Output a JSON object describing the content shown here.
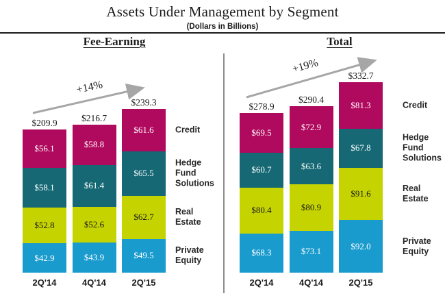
{
  "title": "Assets Under Management by Segment",
  "subtitle": "(Dollars in Billions)",
  "colors": {
    "credit": "#B00A5E",
    "hedge_fund_solutions": "#156874",
    "real_estate": "#C5D400",
    "private_equity": "#1A9BCE",
    "arrow": "#A6A6A6",
    "divider": "#8C8C8C",
    "top_rule": "#1A1A1A"
  },
  "chart_data": [
    {
      "type": "bar",
      "stacked": true,
      "title": "Fee-Earning",
      "growth_label": "+14%",
      "categories": [
        "2Q'14",
        "4Q'14",
        "2Q'15"
      ],
      "series": [
        {
          "name": "Private Equity",
          "color": "#1A9BCE",
          "label_color": "#FFFFFF",
          "values": [
            42.9,
            43.9,
            49.5
          ]
        },
        {
          "name": "Real Estate",
          "color": "#C5D400",
          "label_color": "#1A1A1A",
          "values": [
            52.8,
            52.6,
            62.7
          ]
        },
        {
          "name": "Hedge Fund Solutions",
          "color": "#156874",
          "label_color": "#FFFFFF",
          "values": [
            58.1,
            61.4,
            65.5
          ]
        },
        {
          "name": "Credit",
          "color": "#B00A5E",
          "label_color": "#FFFFFF",
          "values": [
            56.1,
            58.8,
            61.6
          ]
        }
      ],
      "totals": [
        209.9,
        216.7,
        239.3
      ],
      "value_prefix": "$",
      "legend_position": "right",
      "grid": false
    },
    {
      "type": "bar",
      "stacked": true,
      "title": "Total",
      "growth_label": "+19%",
      "categories": [
        "2Q'14",
        "4Q'14",
        "2Q'15"
      ],
      "series": [
        {
          "name": "Private Equity",
          "color": "#1A9BCE",
          "label_color": "#FFFFFF",
          "values": [
            68.3,
            73.1,
            92.0
          ]
        },
        {
          "name": "Real Estate",
          "color": "#C5D400",
          "label_color": "#1A1A1A",
          "values": [
            80.4,
            80.9,
            91.6
          ]
        },
        {
          "name": "Hedge Fund Solutions",
          "color": "#156874",
          "label_color": "#FFFFFF",
          "values": [
            60.7,
            63.6,
            67.8
          ]
        },
        {
          "name": "Credit",
          "color": "#B00A5E",
          "label_color": "#FFFFFF",
          "values": [
            69.5,
            72.9,
            81.3
          ]
        }
      ],
      "totals": [
        278.9,
        290.4,
        332.7
      ],
      "value_prefix": "$",
      "legend_position": "right",
      "grid": false
    }
  ]
}
